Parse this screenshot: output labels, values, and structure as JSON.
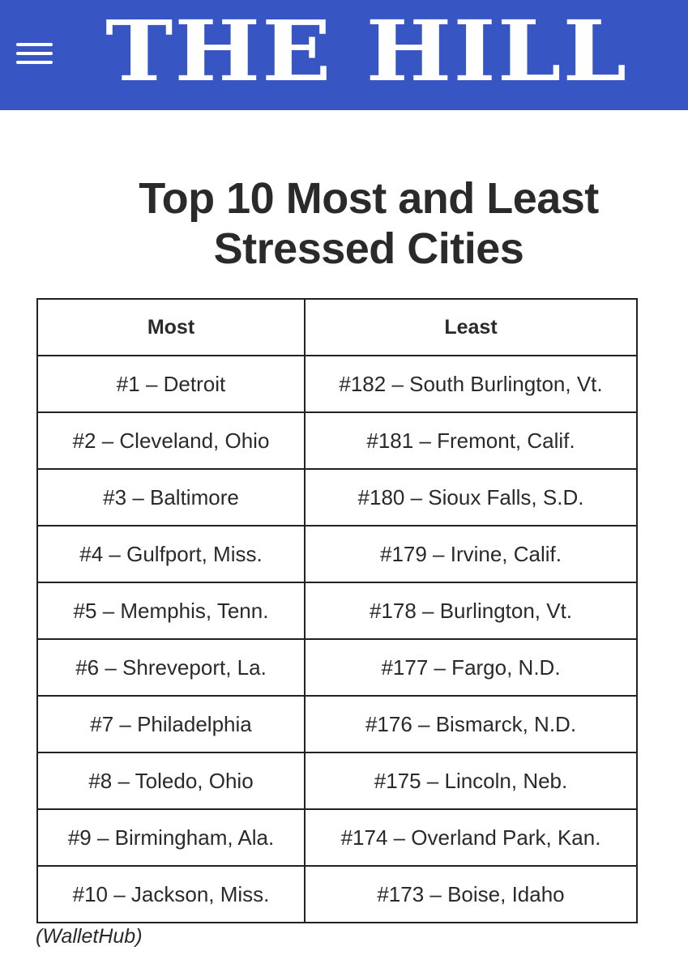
{
  "header": {
    "logo_text": "THE HILL",
    "menu_icon": "hamburger-menu-icon",
    "background_color": "#3756c4"
  },
  "article": {
    "title_line1": "Top 10 Most and Least",
    "title_line2": "Stressed Cities"
  },
  "table": {
    "columns": [
      "Most",
      "Least"
    ],
    "rows": [
      [
        "#1 – Detroit",
        "#182 – South Burlington, Vt."
      ],
      [
        "#2 – Cleveland, Ohio",
        "#181 – Fremont, Calif."
      ],
      [
        "#3 – Baltimore",
        "#180 – Sioux Falls, S.D."
      ],
      [
        "#4 – Gulfport, Miss.",
        "#179 – Irvine, Calif."
      ],
      [
        "#5 – Memphis, Tenn.",
        "#178 – Burlington, Vt."
      ],
      [
        "#6 – Shreveport, La.",
        "#177 – Fargo, N.D."
      ],
      [
        "#7 – Philadelphia",
        "#176 – Bismarck, N.D."
      ],
      [
        "#8 – Toledo, Ohio",
        "#175 – Lincoln, Neb."
      ],
      [
        "#9 – Birmingham, Ala.",
        "#174 – Overland Park, Kan."
      ],
      [
        "#10 – Jackson, Miss.",
        "#173 – Boise, Idaho"
      ]
    ]
  },
  "source": "(WalletHub)"
}
